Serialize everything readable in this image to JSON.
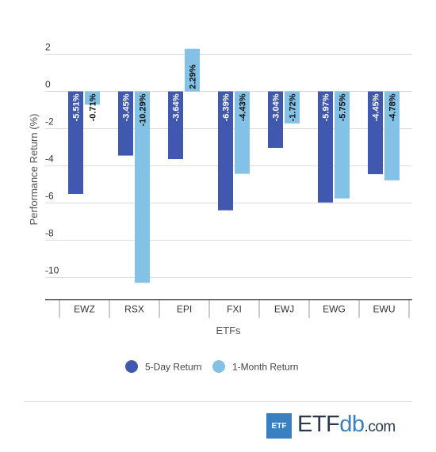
{
  "chart_data": {
    "type": "bar",
    "categories": [
      "EWZ",
      "RSX",
      "EPI",
      "FXI",
      "EWJ",
      "EWG",
      "EWU"
    ],
    "series": [
      {
        "name": "5-Day Return",
        "color": "#4158b0",
        "values": [
          -5.51,
          -3.45,
          -3.64,
          -6.39,
          -3.04,
          -5.97,
          -4.45
        ],
        "labels": [
          "-5.51%",
          "-3.45%",
          "-3.64%",
          "-6.39%",
          "-3.04%",
          "-5.97%",
          "-4.45%"
        ]
      },
      {
        "name": "1-Month Return",
        "color": "#84c1e6",
        "values": [
          -0.71,
          -10.29,
          2.29,
          -4.43,
          -1.72,
          -5.75,
          -4.78
        ],
        "labels": [
          "-0.71%",
          "-10.29%",
          "2.29%",
          "-4.43%",
          "-1.72%",
          "-5.75%",
          "-4.78%"
        ]
      }
    ],
    "xlabel": "ETFs",
    "ylabel": "Performance Return (%)",
    "ylim": [
      -11.2,
      2.5
    ],
    "yticks": [
      2,
      0,
      -2,
      -4,
      -6,
      -8,
      -10
    ],
    "grid": true,
    "legend_position": "bottom-center"
  },
  "branding": {
    "logo_box": "ETF",
    "logo_main": "ETF",
    "logo_db": "db",
    "logo_suffix": ".com"
  }
}
